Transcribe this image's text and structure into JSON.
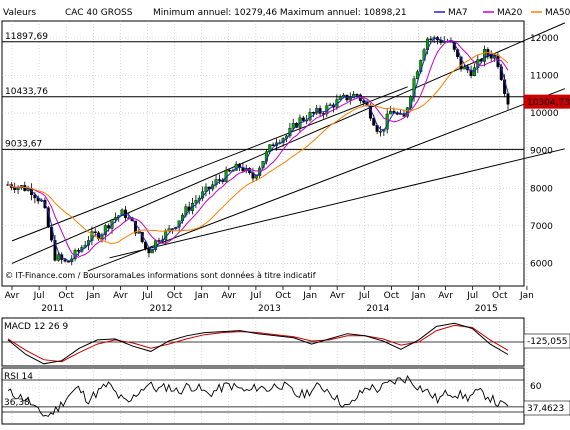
{
  "header": {
    "label": "Valeurs",
    "instrument": "CAC 40 GROSS",
    "stats": "Minimum annuel: 10279,46 Maximum annuel: 10898,21",
    "legend": [
      {
        "name": "MA7",
        "color": "#2222cc"
      },
      {
        "name": "MA20",
        "color": "#cc00cc"
      },
      {
        "name": "MA50",
        "color": "#ff8000"
      }
    ]
  },
  "watermark": "© IT-Finance.com / BoursoramaLes informations sont données à titre indicatif",
  "colors": {
    "candle_up": "#00aa00",
    "candle_down": "#000000",
    "price_badge": "#cc0000",
    "macd": "#000000",
    "signal": "#cc0000",
    "grid": "#bbbbbb"
  },
  "chart_data": [
    {
      "type": "candlestick",
      "title": "CAC 40 GROSS",
      "ylim": [
        5400,
        12450
      ],
      "y_ticks": [
        "6000",
        "7000",
        "8000",
        "9000",
        "10000",
        "11000",
        "12000"
      ],
      "y_tick_values": [
        6000,
        7000,
        8000,
        9000,
        10000,
        11000,
        12000
      ],
      "x_month_labels": [
        "Avr",
        "Jul",
        "Oct",
        "Jan",
        "Avr",
        "Jul",
        "Oct",
        "Jan",
        "Avr",
        "Jul",
        "Oct",
        "Jan",
        "Avr",
        "Jul",
        "Oct",
        "Jan",
        "Avr",
        "Jul",
        "Oct",
        "Jan"
      ],
      "x_year_labels": [
        {
          "label": "2011",
          "month_index": 1.5
        },
        {
          "label": "2012",
          "month_index": 5.5
        },
        {
          "label": "2013",
          "month_index": 9.5
        },
        {
          "label": "2014",
          "month_index": 13.5
        },
        {
          "label": "2015",
          "month_index": 17.5
        }
      ],
      "reference_lines": [
        {
          "label": "11897,69",
          "value": 11897.69
        },
        {
          "label": "10433,76",
          "value": 10433.76
        },
        {
          "label": "9033,67",
          "value": 9033.67
        }
      ],
      "last_price": {
        "label": "10304,73",
        "value": 10304.73
      },
      "close_series_monthly": [
        8100,
        8050,
        7950,
        7600,
        6200,
        6000,
        6300,
        6700,
        6800,
        7200,
        7350,
        6900,
        6300,
        6700,
        6900,
        7300,
        7650,
        7900,
        8200,
        8400,
        8600,
        8250,
        8800,
        9300,
        9400,
        9800,
        9950,
        10050,
        10250,
        10400,
        10500,
        10100,
        9450,
        10100,
        9800,
        11000,
        12000,
        11950,
        11900,
        11200,
        11100,
        11600,
        11500,
        10300
      ],
      "series": [
        {
          "name": "MA7",
          "color": "#2222cc"
        },
        {
          "name": "MA20",
          "color": "#cc00cc"
        },
        {
          "name": "MA50",
          "color": "#ff8000"
        }
      ]
    },
    {
      "type": "line",
      "title": "MACD",
      "label": "MACD 12 26 9",
      "last_value": "-125,055",
      "macd": [
        20,
        -120,
        -210,
        -180,
        -60,
        20,
        30,
        -40,
        -90,
        10,
        60,
        90,
        100,
        110,
        80,
        60,
        40,
        -20,
        30,
        80,
        60,
        10,
        -70,
        20,
        150,
        180,
        130,
        -20,
        -120
      ],
      "signal": [
        30,
        -80,
        -170,
        -190,
        -100,
        -20,
        20,
        -10,
        -60,
        -20,
        30,
        70,
        90,
        100,
        90,
        70,
        50,
        10,
        20,
        60,
        60,
        30,
        -30,
        0,
        110,
        160,
        140,
        20,
        -80
      ]
    },
    {
      "type": "line",
      "title": "RSI",
      "label": "RSI 14",
      "ref_low_label": "36,38",
      "ref_high_label": "60",
      "ref_low": 36.38,
      "ref_high": 60,
      "last_value": "37,4623",
      "values": [
        55,
        50,
        45,
        30,
        25,
        35,
        50,
        60,
        45,
        55,
        65,
        50,
        40,
        55,
        65,
        58,
        62,
        55,
        63,
        60,
        52,
        58,
        64,
        60,
        55,
        62,
        58,
        65,
        60,
        50,
        55,
        62,
        58,
        45,
        35,
        50,
        62,
        58,
        65,
        70,
        72,
        62,
        55,
        45,
        55,
        52,
        48,
        55,
        50,
        40,
        37
      ]
    }
  ]
}
